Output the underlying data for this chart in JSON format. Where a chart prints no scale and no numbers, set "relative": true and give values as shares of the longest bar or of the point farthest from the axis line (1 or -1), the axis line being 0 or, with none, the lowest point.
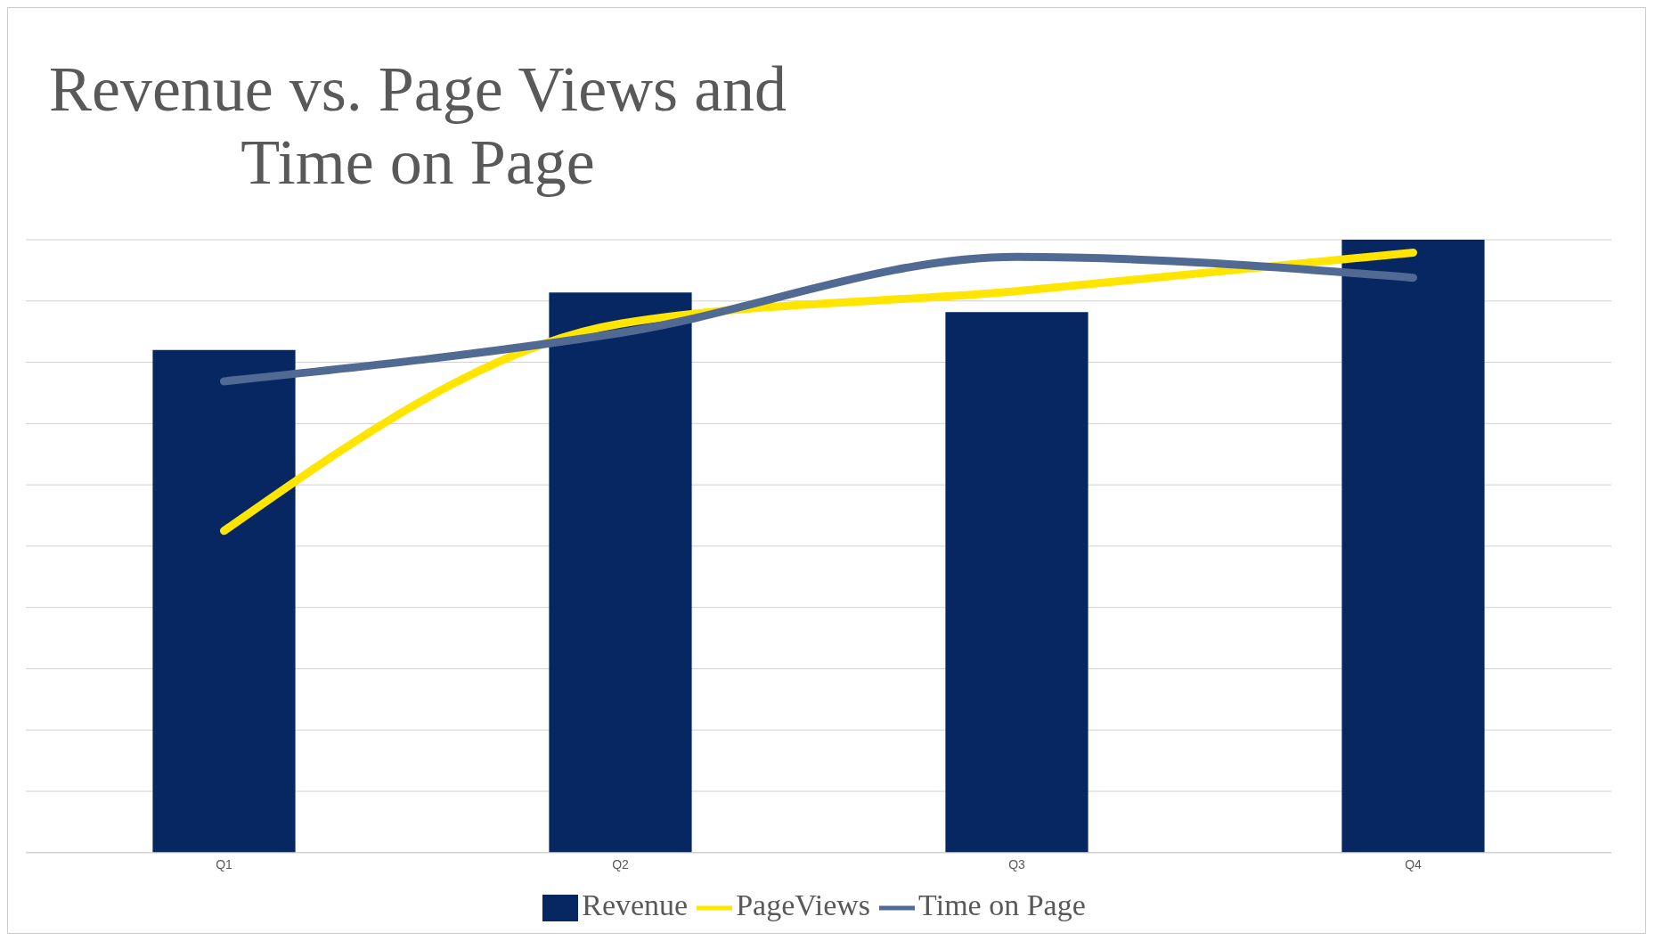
{
  "chart_data": {
    "type": "bar",
    "title": "Revenue vs. Page Views and Time on Page",
    "relative": true,
    "grid": "y",
    "legend": "bottom",
    "categories": [
      "Q1",
      "Q2",
      "Q3",
      "Q4"
    ],
    "series": [
      {
        "name": "Revenue",
        "color": "#062761",
        "values": [
          0.82,
          0.914,
          0.882,
          1
        ]
      },
      {
        "name": "PageViews",
        "type": "line",
        "color": "#ffe500",
        "values": [
          0.525,
          0.863,
          0.916,
          0.979
        ]
      },
      {
        "name": "Time on Page",
        "type": "line",
        "color": "#506a93",
        "values": [
          0.769,
          0.848,
          0.972,
          0.938
        ]
      }
    ]
  }
}
